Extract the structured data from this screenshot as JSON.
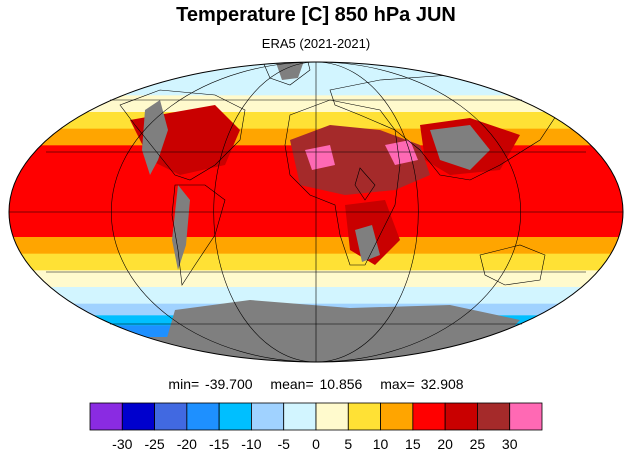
{
  "figure": {
    "title": "Temperature [C] 850 hPa JUN",
    "subtitle": "ERA5 (2021-2021)"
  },
  "stats": {
    "min_text": "min= -39.700",
    "mean_text": "mean= 10.856",
    "max_text": "max= 32.908"
  },
  "colorbar": {
    "colors": [
      "#8a2be2",
      "#0000cd",
      "#4169e1",
      "#1e90ff",
      "#00bfff",
      "#a0d2ff",
      "#d2f5ff",
      "#fffacd",
      "#ffe135",
      "#ffa500",
      "#ff0000",
      "#c90000",
      "#a52a2a",
      "#ff69b4"
    ],
    "labels": [
      "-30",
      "-25",
      "-20",
      "-15",
      "-10",
      "-5",
      "0",
      "5",
      "10",
      "15",
      "20",
      "25",
      "30"
    ]
  },
  "map": {
    "projection": "Mollweide",
    "missing_color": "#7f7f7f",
    "zonal_bands": [
      {
        "lat_from": 90,
        "lat_to": 70,
        "color": "#d2f5ff"
      },
      {
        "lat_from": 70,
        "lat_to": 60,
        "color": "#fffacd"
      },
      {
        "lat_from": 60,
        "lat_to": 50,
        "color": "#ffe135"
      },
      {
        "lat_from": 50,
        "lat_to": 40,
        "color": "#ffa500"
      },
      {
        "lat_from": 40,
        "lat_to": -15,
        "color": "#ff0000"
      },
      {
        "lat_from": -15,
        "lat_to": -25,
        "color": "#ffa500"
      },
      {
        "lat_from": -25,
        "lat_to": -35,
        "color": "#ffe135"
      },
      {
        "lat_from": -35,
        "lat_to": -45,
        "color": "#fffacd"
      },
      {
        "lat_from": -45,
        "lat_to": -55,
        "color": "#d2f5ff"
      },
      {
        "lat_from": -55,
        "lat_to": -62,
        "color": "#a0d2ff"
      },
      {
        "lat_from": -62,
        "lat_to": -68,
        "color": "#00bfff"
      },
      {
        "lat_from": -68,
        "lat_to": -75,
        "color": "#1e90ff"
      },
      {
        "lat_from": -75,
        "lat_to": -90,
        "color": "#7f7f7f"
      }
    ]
  }
}
